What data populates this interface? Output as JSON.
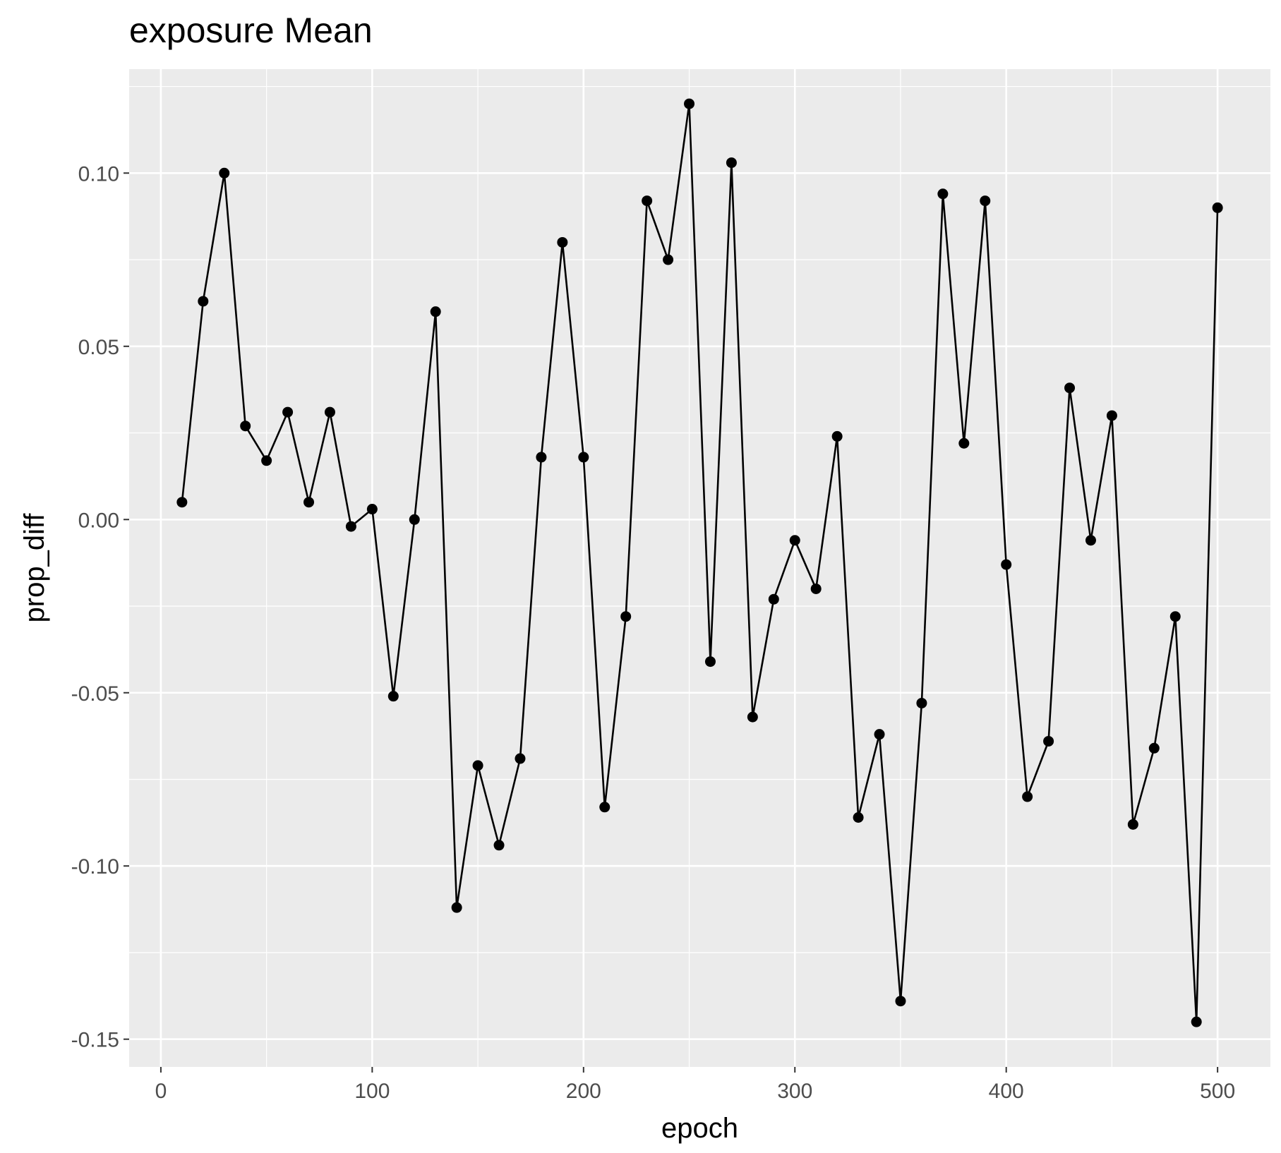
{
  "chart_data": {
    "type": "line",
    "title": "exposure Mean",
    "xlabel": "epoch",
    "ylabel": "prop_diff",
    "xlim": [
      -15,
      525
    ],
    "ylim": [
      -0.158,
      0.13
    ],
    "x_ticks": [
      0,
      100,
      200,
      300,
      400,
      500
    ],
    "x_tick_labels": [
      "0",
      "100",
      "200",
      "300",
      "400",
      "500"
    ],
    "y_ticks": [
      -0.15,
      -0.1,
      -0.05,
      0.0,
      0.05,
      0.1
    ],
    "y_tick_labels": [
      "-0.15",
      "-0.10",
      "-0.05",
      "0.00",
      "0.05",
      "0.10"
    ],
    "grid": true,
    "markers": true,
    "series": [
      {
        "x": [
          10,
          20,
          30,
          40,
          50,
          60,
          70,
          80,
          90,
          100,
          110,
          120,
          130,
          140,
          150,
          160,
          170,
          180,
          190,
          200,
          210,
          220,
          230,
          240,
          250,
          260,
          270,
          280,
          290,
          300,
          310,
          320,
          330,
          340,
          350,
          360,
          370,
          380,
          390,
          400,
          410,
          420,
          430,
          440,
          450,
          460,
          470,
          480,
          490,
          500
        ],
        "y": [
          0.005,
          0.063,
          0.1,
          0.027,
          0.017,
          0.031,
          0.005,
          0.031,
          -0.002,
          0.003,
          -0.051,
          0.0,
          0.06,
          -0.112,
          -0.071,
          -0.094,
          -0.069,
          0.018,
          0.08,
          0.018,
          -0.083,
          -0.028,
          0.092,
          0.075,
          0.12,
          -0.041,
          0.103,
          -0.057,
          -0.023,
          -0.006,
          -0.02,
          0.024,
          -0.086,
          -0.062,
          -0.139,
          -0.053,
          0.094,
          0.022,
          0.092,
          -0.013,
          -0.08,
          -0.064,
          0.038,
          -0.006,
          0.03,
          -0.088,
          -0.066,
          -0.028,
          -0.145,
          0.09
        ]
      }
    ]
  }
}
